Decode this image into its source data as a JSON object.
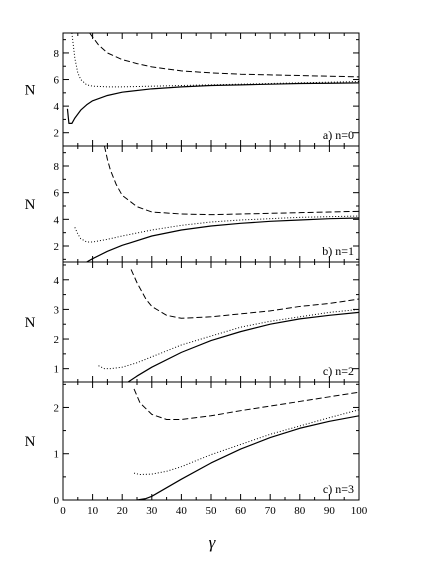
{
  "figure": {
    "xlabel": "γ",
    "x_ticks": [
      0,
      10,
      20,
      30,
      40,
      50,
      60,
      70,
      80,
      90,
      100
    ]
  },
  "chart_data": [
    {
      "type": "line",
      "label": "a)  n=0",
      "ylabel": "N",
      "xlim": [
        0,
        100
      ],
      "ylim": [
        1,
        9.5
      ],
      "y_ticks": [
        2,
        4,
        6,
        8
      ],
      "series": [
        {
          "style": "solid",
          "points": [
            [
              1.5,
              3.8
            ],
            [
              2,
              2.7
            ],
            [
              3,
              2.7
            ],
            [
              4,
              3.1
            ],
            [
              6,
              3.7
            ],
            [
              8,
              4.1
            ],
            [
              10,
              4.4
            ],
            [
              15,
              4.8
            ],
            [
              20,
              5.05
            ],
            [
              30,
              5.3
            ],
            [
              40,
              5.45
            ],
            [
              50,
              5.55
            ],
            [
              60,
              5.6
            ],
            [
              70,
              5.65
            ],
            [
              80,
              5.7
            ],
            [
              90,
              5.72
            ],
            [
              100,
              5.75
            ]
          ]
        },
        {
          "style": "dotted",
          "points": [
            [
              3,
              9.5
            ],
            [
              4,
              7.6
            ],
            [
              5,
              6.5
            ],
            [
              6,
              6.0
            ],
            [
              8,
              5.6
            ],
            [
              10,
              5.5
            ],
            [
              15,
              5.45
            ],
            [
              20,
              5.45
            ],
            [
              30,
              5.5
            ],
            [
              40,
              5.55
            ],
            [
              50,
              5.6
            ],
            [
              60,
              5.65
            ],
            [
              70,
              5.7
            ],
            [
              80,
              5.75
            ],
            [
              90,
              5.8
            ],
            [
              100,
              5.85
            ]
          ]
        },
        {
          "style": "dashed",
          "points": [
            [
              9,
              9.5
            ],
            [
              12,
              8.6
            ],
            [
              15,
              8.0
            ],
            [
              20,
              7.5
            ],
            [
              25,
              7.2
            ],
            [
              30,
              6.95
            ],
            [
              40,
              6.65
            ],
            [
              50,
              6.5
            ],
            [
              60,
              6.4
            ],
            [
              70,
              6.35
            ],
            [
              80,
              6.3
            ],
            [
              90,
              6.25
            ],
            [
              100,
              6.2
            ]
          ]
        }
      ]
    },
    {
      "type": "line",
      "label": "b)  n=1",
      "ylabel": "N",
      "xlim": [
        0,
        100
      ],
      "ylim": [
        0.8,
        9.5
      ],
      "y_ticks": [
        2,
        4,
        6,
        8
      ],
      "series": [
        {
          "style": "solid",
          "points": [
            [
              8,
              0.8
            ],
            [
              10,
              1.05
            ],
            [
              15,
              1.6
            ],
            [
              20,
              2.05
            ],
            [
              30,
              2.75
            ],
            [
              40,
              3.2
            ],
            [
              50,
              3.5
            ],
            [
              60,
              3.7
            ],
            [
              70,
              3.85
            ],
            [
              80,
              3.95
            ],
            [
              90,
              4.05
            ],
            [
              100,
              4.1
            ]
          ]
        },
        {
          "style": "dotted",
          "points": [
            [
              4,
              3.4
            ],
            [
              5,
              2.9
            ],
            [
              6,
              2.55
            ],
            [
              8,
              2.3
            ],
            [
              10,
              2.3
            ],
            [
              15,
              2.5
            ],
            [
              20,
              2.75
            ],
            [
              30,
              3.2
            ],
            [
              40,
              3.55
            ],
            [
              50,
              3.8
            ],
            [
              60,
              3.95
            ],
            [
              70,
              4.05
            ],
            [
              80,
              4.15
            ],
            [
              90,
              4.2
            ],
            [
              100,
              4.25
            ]
          ]
        },
        {
          "style": "dashed",
          "points": [
            [
              14,
              9.5
            ],
            [
              15,
              8.5
            ],
            [
              16,
              7.7
            ],
            [
              18,
              6.6
            ],
            [
              20,
              5.8
            ],
            [
              25,
              4.95
            ],
            [
              30,
              4.55
            ],
            [
              40,
              4.4
            ],
            [
              50,
              4.35
            ],
            [
              60,
              4.4
            ],
            [
              70,
              4.45
            ],
            [
              80,
              4.5
            ],
            [
              90,
              4.55
            ],
            [
              100,
              4.6
            ]
          ]
        }
      ]
    },
    {
      "type": "line",
      "label": "c)  n=2",
      "ylabel": "N",
      "xlim": [
        0,
        100
      ],
      "ylim": [
        0.55,
        4.6
      ],
      "y_ticks": [
        1,
        2,
        3,
        4
      ],
      "series": [
        {
          "style": "solid",
          "points": [
            [
              22,
              0.55
            ],
            [
              25,
              0.75
            ],
            [
              30,
              1.05
            ],
            [
              40,
              1.55
            ],
            [
              50,
              1.95
            ],
            [
              60,
              2.25
            ],
            [
              70,
              2.5
            ],
            [
              80,
              2.68
            ],
            [
              90,
              2.8
            ],
            [
              100,
              2.9
            ]
          ]
        },
        {
          "style": "dotted",
          "points": [
            [
              12,
              1.1
            ],
            [
              14,
              1.0
            ],
            [
              16,
              1.0
            ],
            [
              20,
              1.05
            ],
            [
              25,
              1.2
            ],
            [
              30,
              1.4
            ],
            [
              40,
              1.8
            ],
            [
              50,
              2.1
            ],
            [
              60,
              2.4
            ],
            [
              70,
              2.6
            ],
            [
              80,
              2.75
            ],
            [
              90,
              2.9
            ],
            [
              100,
              3.0
            ]
          ]
        },
        {
          "style": "dashed",
          "points": [
            [
              23,
              4.35
            ],
            [
              25,
              3.9
            ],
            [
              28,
              3.35
            ],
            [
              30,
              3.1
            ],
            [
              35,
              2.8
            ],
            [
              40,
              2.7
            ],
            [
              50,
              2.75
            ],
            [
              60,
              2.85
            ],
            [
              70,
              2.95
            ],
            [
              80,
              3.1
            ],
            [
              90,
              3.2
            ],
            [
              100,
              3.35
            ]
          ]
        }
      ]
    },
    {
      "type": "line",
      "label": "c)  n=3",
      "ylabel": "N",
      "xlim": [
        0,
        100
      ],
      "ylim": [
        0,
        2.55
      ],
      "y_ticks": [
        0,
        1,
        2
      ],
      "series": [
        {
          "style": "solid",
          "points": [
            [
              25,
              0
            ],
            [
              28,
              0.03
            ],
            [
              30,
              0.08
            ],
            [
              40,
              0.45
            ],
            [
              50,
              0.8
            ],
            [
              60,
              1.1
            ],
            [
              70,
              1.35
            ],
            [
              80,
              1.55
            ],
            [
              90,
              1.7
            ],
            [
              100,
              1.82
            ]
          ]
        },
        {
          "style": "dotted",
          "points": [
            [
              24,
              0.58
            ],
            [
              26,
              0.55
            ],
            [
              30,
              0.56
            ],
            [
              35,
              0.62
            ],
            [
              40,
              0.72
            ],
            [
              50,
              0.98
            ],
            [
              60,
              1.2
            ],
            [
              70,
              1.42
            ],
            [
              80,
              1.6
            ],
            [
              90,
              1.78
            ],
            [
              100,
              1.95
            ]
          ]
        },
        {
          "style": "dashed",
          "points": [
            [
              24,
              2.4
            ],
            [
              26,
              2.1
            ],
            [
              30,
              1.85
            ],
            [
              35,
              1.74
            ],
            [
              40,
              1.74
            ],
            [
              50,
              1.82
            ],
            [
              60,
              1.93
            ],
            [
              70,
              2.03
            ],
            [
              80,
              2.13
            ],
            [
              90,
              2.23
            ],
            [
              100,
              2.33
            ]
          ]
        }
      ]
    }
  ]
}
